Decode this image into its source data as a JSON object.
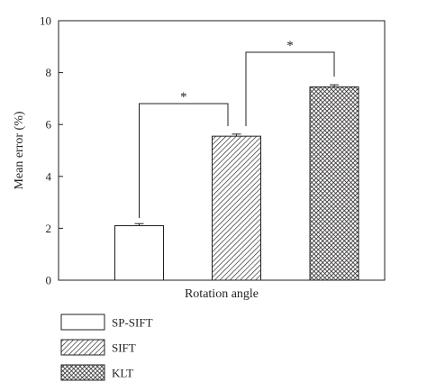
{
  "chart_data": {
    "type": "bar",
    "xlabel": "Rotation angle",
    "ylabel": "Mean error (%)",
    "ylim": [
      0,
      10
    ],
    "yticks": [
      0,
      2,
      4,
      6,
      8,
      10
    ],
    "grid": false,
    "legend_position": "bottom-left",
    "series": [
      {
        "name": "SP-SIFT",
        "value": 2.1,
        "error": 0.08,
        "pattern": "solid-white"
      },
      {
        "name": "SIFT",
        "value": 5.55,
        "error": 0.08,
        "pattern": "diagonal-hatch"
      },
      {
        "name": "KLT",
        "value": 7.45,
        "error": 0.08,
        "pattern": "crosshatch"
      }
    ],
    "annotations": [
      {
        "from": "SP-SIFT",
        "to": "SIFT",
        "text": "*"
      },
      {
        "from": "SIFT",
        "to": "KLT",
        "text": "*"
      }
    ],
    "colors": {
      "ink": "#231f20",
      "background": "#ffffff"
    }
  }
}
